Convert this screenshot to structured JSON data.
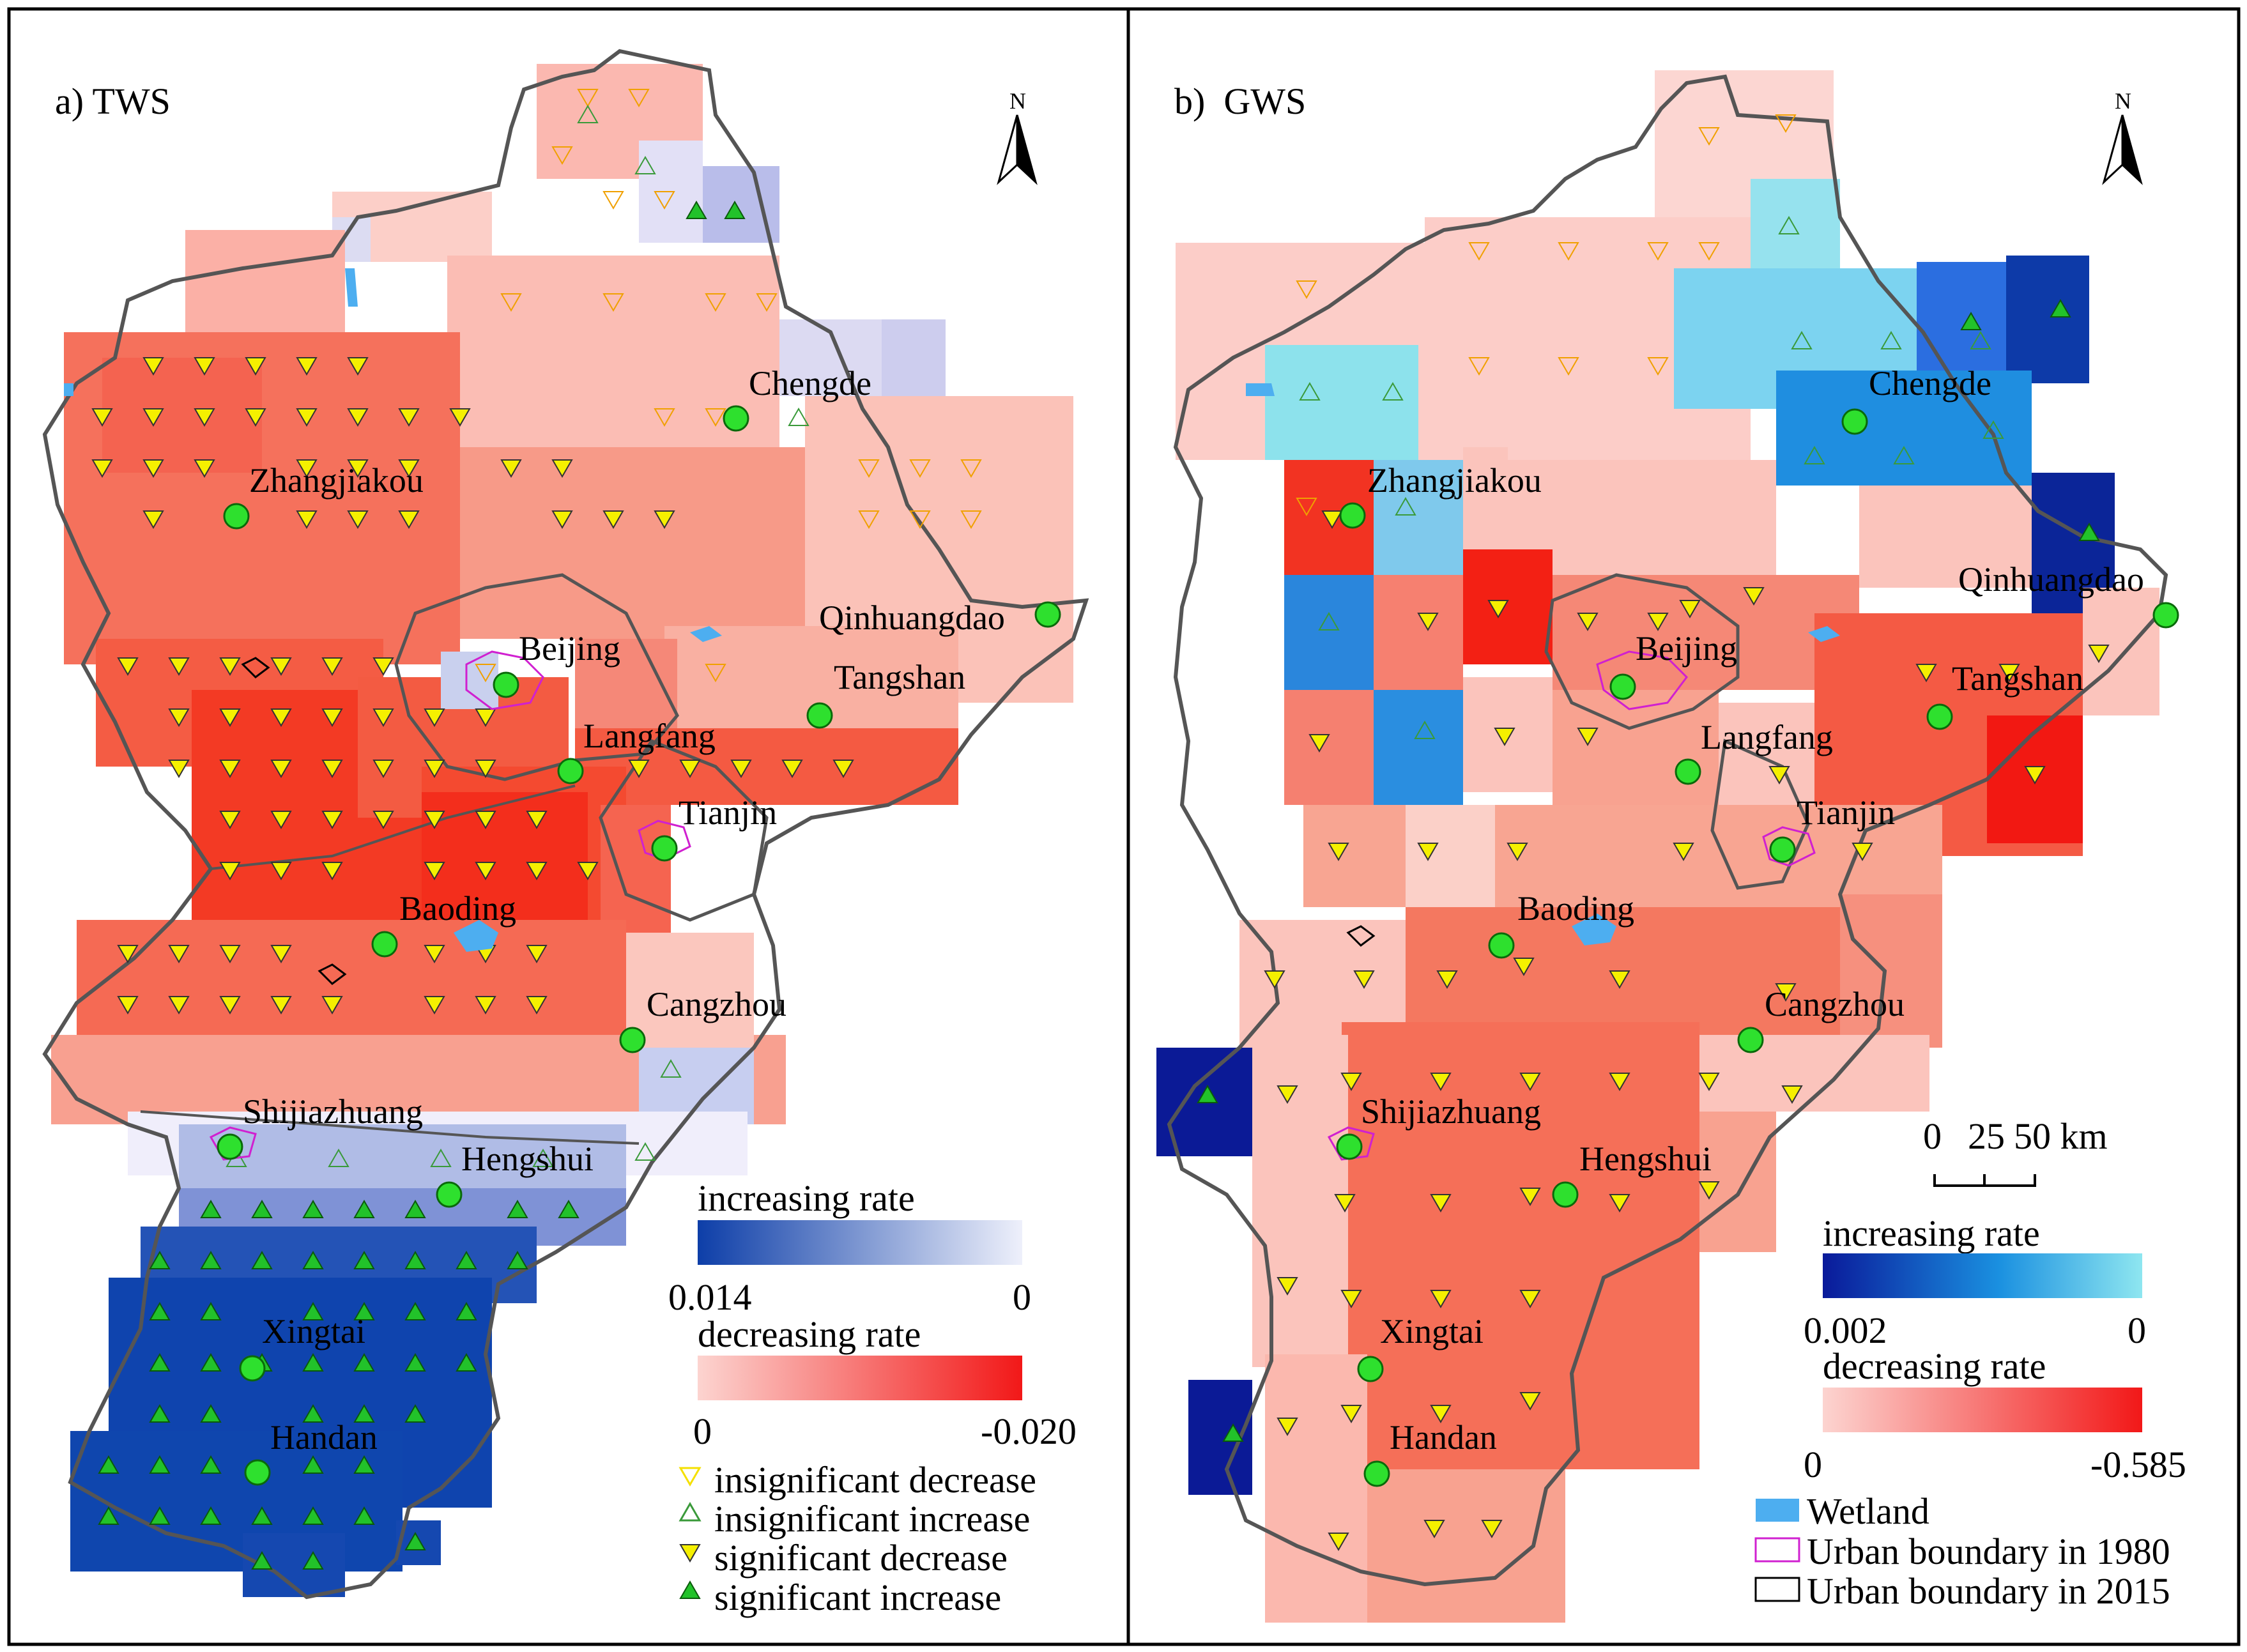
{
  "panels": [
    {
      "id": "a",
      "title": "a) TWS",
      "north_label": "N",
      "cities": [
        "Chengde",
        "Zhangjiakou",
        "Beijing",
        "Qinhuangdao",
        "Tangshan",
        "Langfang",
        "Tianjin",
        "Baoding",
        "Cangzhou",
        "Shijiazhuang",
        "Hengshui",
        "Xingtai",
        "Handan"
      ],
      "legend": {
        "increasing_label": "increasing rate",
        "increasing_min": "0.014",
        "increasing_max": "0",
        "decreasing_label": "decreasing rate",
        "decreasing_min": "0",
        "decreasing_max": "-0.020",
        "symbols": [
          {
            "label": "insignificant decrease",
            "shape": "open-down-triangle",
            "color": "#f5e000"
          },
          {
            "label": "insignificant increase",
            "shape": "open-up-triangle",
            "color": "#3a9a3a"
          },
          {
            "label": "significant decrease",
            "shape": "filled-down-triangle",
            "color": "#f5f000"
          },
          {
            "label": "significant increase",
            "shape": "filled-up-triangle",
            "color": "#22c22a"
          }
        ]
      }
    },
    {
      "id": "b",
      "title": "b)  GWS",
      "north_label": "N",
      "cities": [
        "Chengde",
        "Zhangjiakou",
        "Qinhuangdao",
        "Beijing",
        "Tangshan",
        "Langfang",
        "Tianjin",
        "Baoding",
        "Cangzhou",
        "Shijiazhuang",
        "Hengshui",
        "Xingtai",
        "Handan"
      ],
      "scale_bar": {
        "labels": [
          "0",
          "25",
          "50 km"
        ]
      },
      "legend": {
        "increasing_label": "increasing rate",
        "increasing_min": "0.002",
        "increasing_max": "0",
        "decreasing_label": "decreasing rate",
        "decreasing_min": "0",
        "decreasing_max": "-0.585",
        "features": [
          {
            "label": "Wetland",
            "color": "#4daef0"
          },
          {
            "label": "Urban boundary in 1980",
            "color": "#d020d0"
          },
          {
            "label": "Urban boundary in 2015",
            "color": "#000000"
          }
        ]
      }
    }
  ],
  "colors": {
    "increase_dark": "#0d3ea8",
    "increase_light": "#eef0fb",
    "gws_increase_dark": "#0a1a9a",
    "gws_increase_light": "#8ee6f0",
    "decrease_light": "#fcd4d0",
    "decrease_dark": "#f21818",
    "city_marker": "#2ee02e",
    "boundary": "#555555"
  }
}
